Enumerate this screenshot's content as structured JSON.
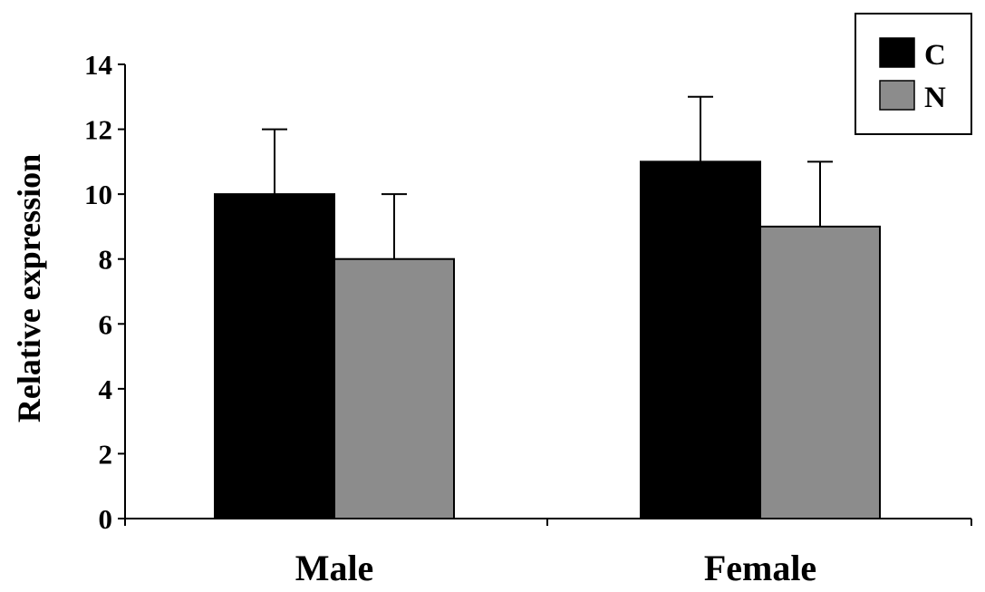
{
  "chart_data": {
    "type": "bar",
    "title": "",
    "xlabel": "",
    "ylabel": "Relative expression",
    "ylim": [
      0,
      14
    ],
    "yticks": [
      0,
      2,
      4,
      6,
      8,
      10,
      12,
      14
    ],
    "categories": [
      "Male",
      "Female"
    ],
    "series": [
      {
        "name": "C",
        "color": "#000000",
        "values": [
          10,
          11
        ],
        "errors": [
          2,
          2
        ]
      },
      {
        "name": "N",
        "color": "#8c8c8c",
        "values": [
          8,
          9
        ],
        "errors": [
          2,
          2
        ]
      }
    ],
    "error_bars": "upper",
    "legend_position": "top-right",
    "grid": false
  }
}
